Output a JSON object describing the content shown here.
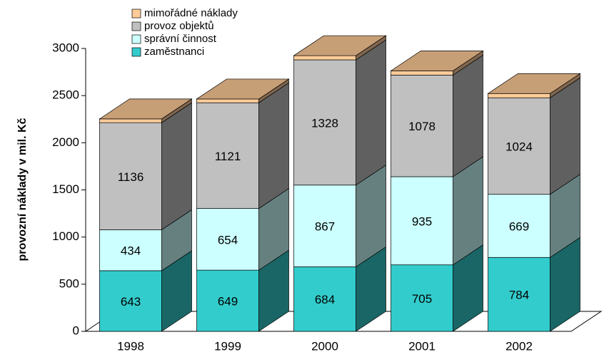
{
  "chart_data": {
    "type": "bar3d_stacked",
    "y_label": "provozní náklady v mil. Kč",
    "categories": [
      "1998",
      "1999",
      "2000",
      "2001",
      "2002"
    ],
    "series": [
      {
        "name": "zaměstnanci",
        "color": "#33cccc",
        "values": [
          643,
          649,
          684,
          705,
          784
        ]
      },
      {
        "name": "správní činnost",
        "color": "#ccffff",
        "values": [
          434,
          654,
          867,
          935,
          669
        ]
      },
      {
        "name": "provoz objektů",
        "color": "#c0c0c0",
        "values": [
          1136,
          1121,
          1328,
          1078,
          1024
        ]
      },
      {
        "name": "mimořádné náklady",
        "color": "#ffcc99",
        "values": [
          40,
          40,
          45,
          45,
          45
        ]
      }
    ],
    "labeled_series": [
      0,
      1,
      2
    ],
    "ylim": [
      0,
      3000
    ],
    "yticks": [
      0,
      500,
      1000,
      1500,
      2000,
      2500,
      3000
    ]
  }
}
